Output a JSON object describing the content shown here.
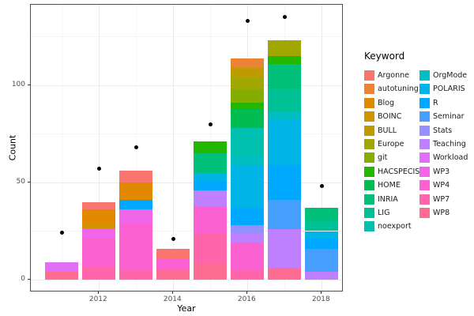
{
  "chart_data": {
    "type": "bar",
    "stacked": true,
    "xlabel": "Year",
    "ylabel": "Count",
    "legend_title": "Keyword",
    "x_major_ticks": [
      2012,
      2014,
      2016,
      2018
    ],
    "x_minor_ticks": [
      2011,
      2013,
      2015,
      2017
    ],
    "y_major_ticks": [
      0,
      50,
      100
    ],
    "y_minor_ticks": [
      25,
      75,
      125
    ],
    "xlim": [
      2010.2,
      2018.6
    ],
    "ylim": [
      -6.5,
      141.5
    ],
    "grid": "major-and-minor",
    "legend_position": "right-two-columns",
    "keywords": [
      {
        "label": "Argonne",
        "color": "#F8766D"
      },
      {
        "label": "autotuning",
        "color": "#EB8335"
      },
      {
        "label": "Blog",
        "color": "#E18A00"
      },
      {
        "label": "BOINC",
        "color": "#CF9400"
      },
      {
        "label": "BULL",
        "color": "#C09B00"
      },
      {
        "label": "Europe",
        "color": "#9FA700"
      },
      {
        "label": "git",
        "color": "#84AD00"
      },
      {
        "label": "HACSPECIS",
        "color": "#24B700"
      },
      {
        "label": "HOME",
        "color": "#00BC51"
      },
      {
        "label": "INRIA",
        "color": "#00C07A"
      },
      {
        "label": "LIG",
        "color": "#00C096"
      },
      {
        "label": "noexport",
        "color": "#00C1B0"
      },
      {
        "label": "OrgMode",
        "color": "#00BFC4"
      },
      {
        "label": "POLARIS",
        "color": "#00B4E8"
      },
      {
        "label": "R",
        "color": "#00A9FF"
      },
      {
        "label": "Seminar",
        "color": "#469FFF"
      },
      {
        "label": "Stats",
        "color": "#9590FF"
      },
      {
        "label": "Teaching",
        "color": "#BF80FF"
      },
      {
        "label": "Workload",
        "color": "#E06EF7"
      },
      {
        "label": "WP3",
        "color": "#F166E8"
      },
      {
        "label": "WP4",
        "color": "#FB61D1"
      },
      {
        "label": "WP7",
        "color": "#FF65AA"
      },
      {
        "label": "WP8",
        "color": "#FF6C92"
      }
    ],
    "bars": [
      {
        "year": 2011,
        "total": 9,
        "segments": [
          {
            "keyword": "WP8",
            "value": 4
          },
          {
            "keyword": "Workload",
            "value": 5
          }
        ]
      },
      {
        "year": 2012,
        "total": 40,
        "segments": [
          {
            "keyword": "WP7",
            "value": 7
          },
          {
            "keyword": "WP4",
            "value": 14
          },
          {
            "keyword": "WP3",
            "value": 5
          },
          {
            "keyword": "BOINC",
            "value": 3
          },
          {
            "keyword": "Blog",
            "value": 7
          },
          {
            "keyword": "Argonne",
            "value": 4
          }
        ]
      },
      {
        "year": 2013,
        "total": 56,
        "segments": [
          {
            "keyword": "WP7",
            "value": 5
          },
          {
            "keyword": "WP4",
            "value": 24
          },
          {
            "keyword": "WP3",
            "value": 7
          },
          {
            "keyword": "R",
            "value": 5
          },
          {
            "keyword": "Blog",
            "value": 9
          },
          {
            "keyword": "Argonne",
            "value": 6
          }
        ]
      },
      {
        "year": 2014,
        "total": 16,
        "segments": [
          {
            "keyword": "WP8",
            "value": 5
          },
          {
            "keyword": "WP4",
            "value": 6
          },
          {
            "keyword": "Argonne",
            "value": 5
          }
        ]
      },
      {
        "year": 2015,
        "total": 71,
        "segments": [
          {
            "keyword": "WP8",
            "value": 8
          },
          {
            "keyword": "WP7",
            "value": 16
          },
          {
            "keyword": "WP4",
            "value": 14
          },
          {
            "keyword": "Teaching",
            "value": 8
          },
          {
            "keyword": "R",
            "value": 5
          },
          {
            "keyword": "POLARIS",
            "value": 4
          },
          {
            "keyword": "INRIA",
            "value": 10
          },
          {
            "keyword": "HACSPECIS",
            "value": 6
          }
        ]
      },
      {
        "year": 2016,
        "total": 114,
        "segments": [
          {
            "keyword": "WP7",
            "value": 5
          },
          {
            "keyword": "WP4",
            "value": 14
          },
          {
            "keyword": "Teaching",
            "value": 5
          },
          {
            "keyword": "Stats",
            "value": 4
          },
          {
            "keyword": "R",
            "value": 9
          },
          {
            "keyword": "POLARIS",
            "value": 22
          },
          {
            "keyword": "OrgMode",
            "value": 5
          },
          {
            "keyword": "noexport",
            "value": 14
          },
          {
            "keyword": "HOME",
            "value": 10
          },
          {
            "keyword": "HACSPECIS",
            "value": 3
          },
          {
            "keyword": "git",
            "value": 7
          },
          {
            "keyword": "Europe",
            "value": 6
          },
          {
            "keyword": "BULL",
            "value": 5
          },
          {
            "keyword": "autotuning",
            "value": 5
          }
        ]
      },
      {
        "year": 2017,
        "total": 123,
        "segments": [
          {
            "keyword": "WP8",
            "value": 6
          },
          {
            "keyword": "Teaching",
            "value": 20
          },
          {
            "keyword": "Seminar",
            "value": 15
          },
          {
            "keyword": "R",
            "value": 18
          },
          {
            "keyword": "POLARIS",
            "value": 23
          },
          {
            "keyword": "OrgMode",
            "value": 4
          },
          {
            "keyword": "LIG",
            "value": 12
          },
          {
            "keyword": "INRIA",
            "value": 13
          },
          {
            "keyword": "HACSPECIS",
            "value": 4
          },
          {
            "keyword": "Europe",
            "value": 8
          }
        ]
      },
      {
        "year": 2018,
        "total": 37,
        "segments": [
          {
            "keyword": "Teaching",
            "value": 4
          },
          {
            "keyword": "Seminar",
            "value": 12
          },
          {
            "keyword": "R",
            "value": 5
          },
          {
            "keyword": "POLARIS",
            "value": 4
          },
          {
            "keyword": "LIG",
            "value": 5
          },
          {
            "keyword": "INRIA",
            "value": 7
          }
        ]
      }
    ],
    "points": [
      {
        "year": 2011,
        "value": 24
      },
      {
        "year": 2012,
        "value": 57
      },
      {
        "year": 2013,
        "value": 68
      },
      {
        "year": 2014,
        "value": 21
      },
      {
        "year": 2015,
        "value": 80
      },
      {
        "year": 2016,
        "value": 133
      },
      {
        "year": 2017,
        "value": 135
      },
      {
        "year": 2018,
        "value": 48
      }
    ]
  }
}
